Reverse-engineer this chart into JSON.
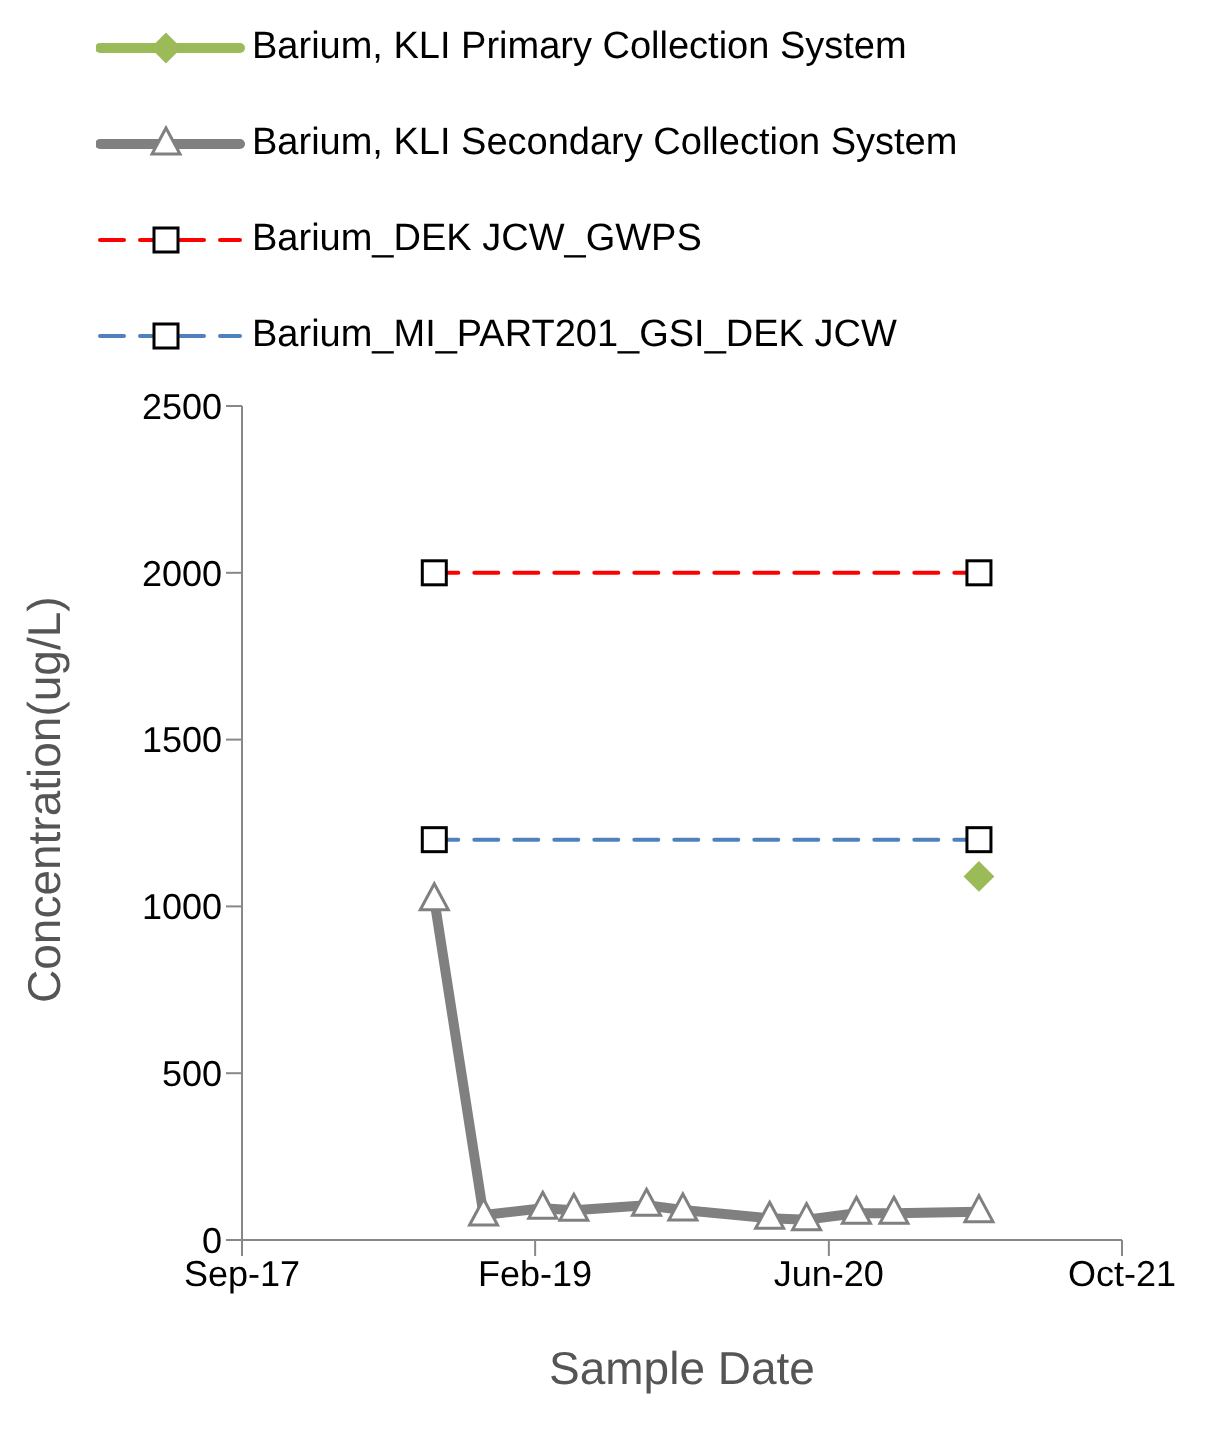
{
  "chart_data": {
    "type": "line",
    "xlabel": "Sample Date",
    "ylabel": "Concentration(ug/L)",
    "xlim": [
      "2017-09-20",
      "2021-10-30"
    ],
    "xticks": [
      {
        "value": "2017-09-20",
        "label": "Sep-17"
      },
      {
        "value": "2019-02-02",
        "label": "Feb-19"
      },
      {
        "value": "2020-06-17",
        "label": "Jun-20"
      },
      {
        "value": "2021-10-30",
        "label": "Oct-21"
      }
    ],
    "ylim": [
      0,
      2500
    ],
    "yticks": [
      0,
      500,
      1000,
      1500,
      2000,
      2500
    ],
    "grid": false,
    "legend": "top",
    "series": [
      {
        "name": "Barium, KLI Primary Collection System",
        "color": "#9bbb59",
        "marker": "diamond",
        "line_style": "solid",
        "x": [
          "2021-02-28"
        ],
        "values": [
          1090
        ]
      },
      {
        "name": "Barium, KLI Secondary Collection System",
        "color": "#808080",
        "marker": "triangle",
        "line_style": "solid",
        "x": [
          "2018-08-14",
          "2018-11-06",
          "2019-02-15",
          "2019-04-09",
          "2019-08-11",
          "2019-10-12",
          "2020-03-08",
          "2020-05-10",
          "2020-08-03",
          "2020-10-06",
          "2021-02-28"
        ],
        "values": [
          1020,
          75,
          95,
          89,
          104,
          90,
          65,
          61,
          80,
          80,
          85
        ]
      },
      {
        "name": "Barium_DEK JCW_GWPS",
        "color": "#ff0000",
        "marker": "square",
        "line_style": "dashed",
        "x": [
          "2018-08-14",
          "2021-02-28"
        ],
        "values": [
          2000,
          2000
        ]
      },
      {
        "name": "Barium_MI_PART201_GSI_DEK JCW",
        "color": "#4f81bd",
        "marker": "square",
        "line_style": "dashed",
        "x": [
          "2018-08-14",
          "2021-02-28"
        ],
        "values": [
          1200,
          1200
        ]
      }
    ]
  }
}
